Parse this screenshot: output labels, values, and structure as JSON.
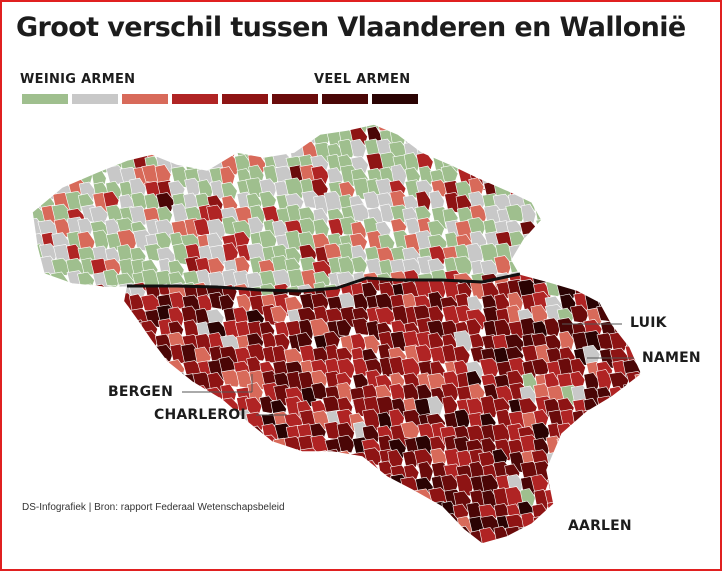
{
  "title": "Groot verschil tussen Vlaanderen en Wallonië",
  "legend": {
    "low_label": "WEINIG ARMEN",
    "high_label": "VEEL ARMEN",
    "colors": [
      "#9fbf8e",
      "#c8c8c8",
      "#d86a5a",
      "#b02424",
      "#8e1414",
      "#6a0b0b",
      "#4a0606",
      "#2a0303"
    ]
  },
  "cities": {
    "luik": "LUIK",
    "namen": "NAMEN",
    "bergen": "BERGEN",
    "charleroi": "CHARLEROI",
    "aarlen": "AARLEN"
  },
  "source": "DS-Infografiek | Bron: rapport Federaal Wetenschapsbeleid"
}
